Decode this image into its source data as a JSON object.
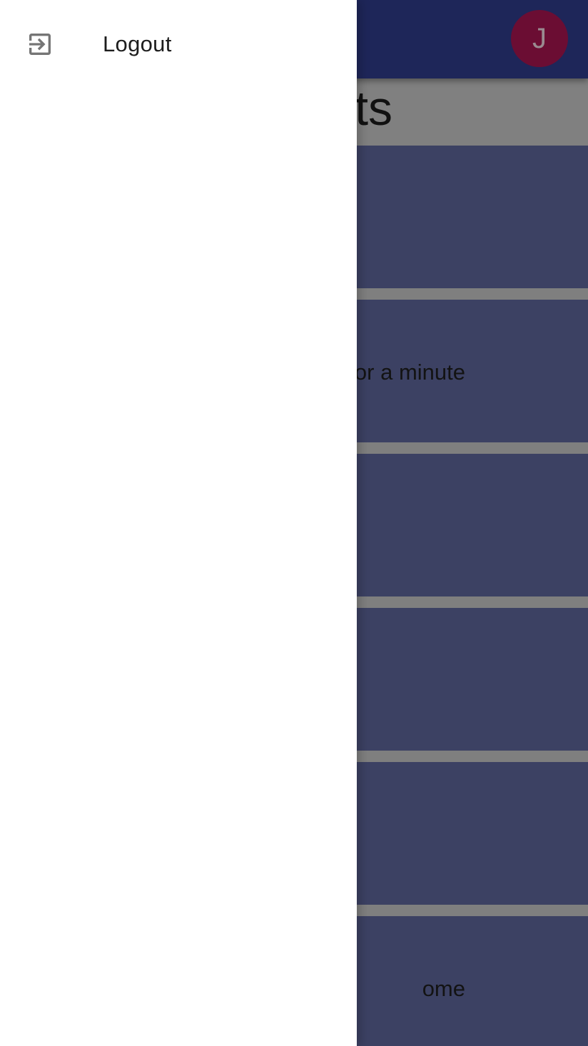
{
  "app_bar": {
    "avatar_initial": "J",
    "background": "#1e2659",
    "avatar_color": "#6b0d33"
  },
  "page": {
    "title_visible_fragment": "ts"
  },
  "cards": [
    {
      "text": ""
    },
    {
      "text": "or a minute"
    },
    {
      "text": ""
    },
    {
      "text": ""
    },
    {
      "text": ""
    },
    {
      "text": "ome"
    }
  ],
  "drawer": {
    "items": [
      {
        "label": "Logout",
        "icon": "logout-icon"
      }
    ]
  }
}
